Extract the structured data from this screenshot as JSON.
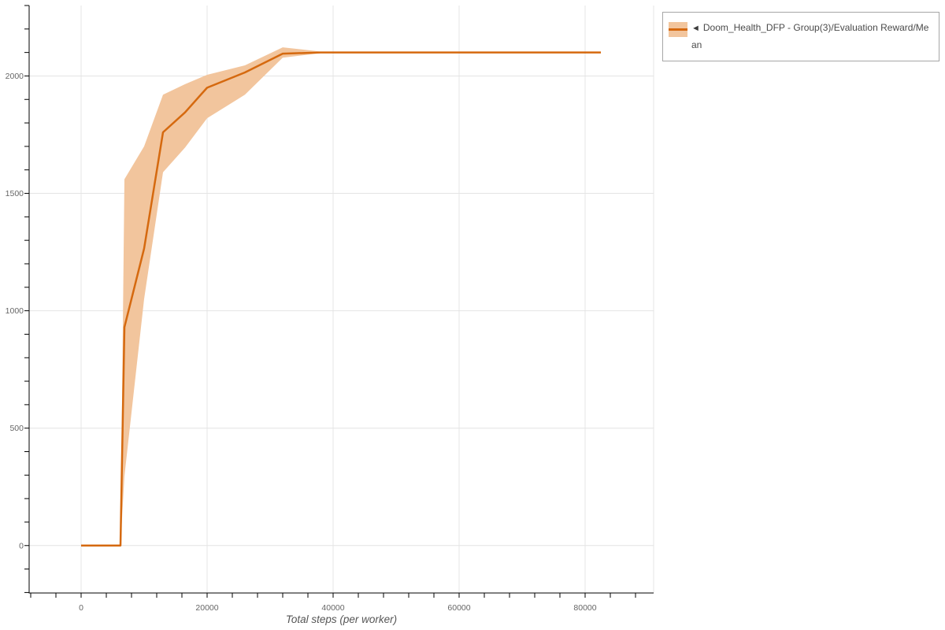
{
  "chart_data": {
    "type": "line",
    "title": "",
    "xlabel": "Total steps (per worker)",
    "ylabel": "",
    "xlim": [
      -8250,
      90875
    ],
    "ylim": [
      -202,
      2300
    ],
    "x_ticks_labeled": [
      0,
      20000,
      40000,
      60000,
      80000
    ],
    "x_tick_labels": [
      "0",
      "20000",
      "40000",
      "60000",
      "80000"
    ],
    "y_ticks_labeled": [
      0,
      500,
      1000,
      1500,
      2000
    ],
    "y_tick_labels": [
      "0",
      "500",
      "1000",
      "1500",
      "2000"
    ],
    "x_minor_tick_step": 4000,
    "y_minor_tick_step": 100,
    "grid": true,
    "right_edge_line": true,
    "legend_position": "top-right",
    "series": [
      {
        "name": "Doom_Health_DFP - Group(3)/Evaluation Reward/Mean",
        "line_color": "#d5690f",
        "band_color": "#f2c59d",
        "points": [
          {
            "step": 0,
            "mean": 0,
            "lower": 0,
            "upper": 0
          },
          {
            "step": 6250,
            "mean": 0,
            "lower": 0,
            "upper": 0
          },
          {
            "step": 6875,
            "mean": 930,
            "lower": 295,
            "upper": 1560
          },
          {
            "step": 10000,
            "mean": 1265,
            "lower": 1050,
            "upper": 1700
          },
          {
            "step": 13000,
            "mean": 1760,
            "lower": 1590,
            "upper": 1920
          },
          {
            "step": 16500,
            "mean": 1845,
            "lower": 1695,
            "upper": 1965
          },
          {
            "step": 20000,
            "mean": 1950,
            "lower": 1820,
            "upper": 2005
          },
          {
            "step": 26000,
            "mean": 2015,
            "lower": 1920,
            "upper": 2045
          },
          {
            "step": 32000,
            "mean": 2095,
            "lower": 2078,
            "upper": 2122
          },
          {
            "step": 38000,
            "mean": 2100,
            "lower": 2097,
            "upper": 2104
          },
          {
            "step": 82500,
            "mean": 2100,
            "lower": 2100,
            "upper": 2100
          }
        ]
      }
    ],
    "colors": {
      "grid": "#e4e4e4",
      "axis": "#000000",
      "tick_label": "#666666",
      "axis_title": "#555555"
    }
  },
  "legend": {
    "collapse_marker": "◄",
    "items": [
      {
        "label": "Doom_Health_DFP - Group(3)/Evaluation Reward/Mean",
        "line_color": "#d5690f",
        "band_color": "#f2c59d"
      }
    ]
  }
}
